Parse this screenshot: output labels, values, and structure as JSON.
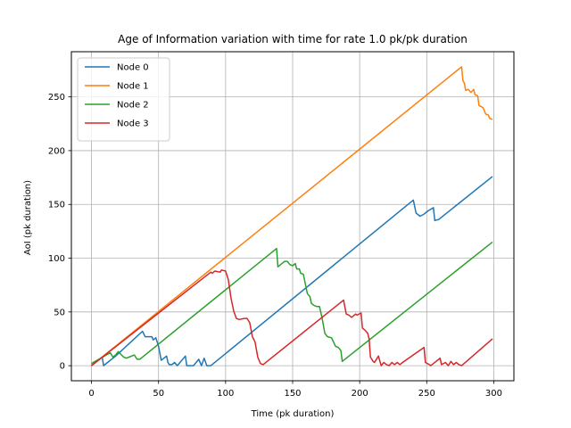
{
  "chart_data": {
    "type": "line",
    "title": "Age of Information variation with time for rate 1.0 pk/pk duration",
    "xlabel": "Time (pk duration)",
    "ylabel": "AoI (pk duration)",
    "xlim": [
      -15,
      315
    ],
    "ylim": [
      -14,
      292
    ],
    "xticks": [
      0,
      50,
      100,
      150,
      200,
      250,
      300
    ],
    "yticks": [
      0,
      50,
      100,
      150,
      200,
      250
    ],
    "grid": true,
    "legend_position": "top-left",
    "series": [
      {
        "name": "Node 0",
        "color": "#1f77b4",
        "points": [
          [
            0,
            0
          ],
          [
            8,
            8
          ],
          [
            9,
            0
          ],
          [
            12,
            3
          ],
          [
            14,
            5
          ],
          [
            18,
            9
          ],
          [
            38,
            32
          ],
          [
            40,
            27
          ],
          [
            45,
            27
          ],
          [
            46,
            24
          ],
          [
            48,
            26
          ],
          [
            50,
            18
          ],
          [
            52,
            5
          ],
          [
            54,
            7
          ],
          [
            56,
            9
          ],
          [
            57,
            3
          ],
          [
            58,
            1
          ],
          [
            60,
            1
          ],
          [
            62,
            3
          ],
          [
            64,
            0
          ],
          [
            70,
            9
          ],
          [
            71,
            0
          ],
          [
            76,
            0
          ],
          [
            80,
            6
          ],
          [
            82,
            0
          ],
          [
            84,
            7
          ],
          [
            86,
            0
          ],
          [
            89,
            0
          ],
          [
            238,
            152
          ],
          [
            240,
            154
          ],
          [
            242,
            142
          ],
          [
            245,
            139
          ],
          [
            248,
            141
          ],
          [
            251,
            144
          ],
          [
            255,
            147
          ],
          [
            256,
            135
          ],
          [
            259,
            136
          ],
          [
            299,
            176
          ]
        ]
      },
      {
        "name": "Node 1",
        "color": "#ff7f0e",
        "points": [
          [
            0,
            0
          ],
          [
            276,
            278
          ],
          [
            277,
            265
          ],
          [
            278,
            263
          ],
          [
            279,
            256
          ],
          [
            281,
            257
          ],
          [
            283,
            254
          ],
          [
            285,
            257
          ],
          [
            286,
            252
          ],
          [
            288,
            251
          ],
          [
            289,
            242
          ],
          [
            292,
            240
          ],
          [
            294,
            234
          ],
          [
            296,
            233
          ],
          [
            297,
            230
          ],
          [
            299,
            229
          ]
        ]
      },
      {
        "name": "Node 2",
        "color": "#2ca02c",
        "points": [
          [
            0,
            2
          ],
          [
            14,
            12
          ],
          [
            16,
            8
          ],
          [
            18,
            10
          ],
          [
            20,
            13
          ],
          [
            24,
            8
          ],
          [
            26,
            7
          ],
          [
            28,
            8
          ],
          [
            32,
            10
          ],
          [
            34,
            6
          ],
          [
            36,
            6
          ],
          [
            138,
            109
          ],
          [
            139,
            92
          ],
          [
            142,
            95
          ],
          [
            144,
            97
          ],
          [
            146,
            97
          ],
          [
            148,
            94
          ],
          [
            150,
            93
          ],
          [
            152,
            95
          ],
          [
            153,
            90
          ],
          [
            155,
            90
          ],
          [
            156,
            86
          ],
          [
            158,
            85
          ],
          [
            161,
            67
          ],
          [
            163,
            64
          ],
          [
            164,
            58
          ],
          [
            166,
            56
          ],
          [
            168,
            55
          ],
          [
            170,
            55
          ],
          [
            172,
            44
          ],
          [
            174,
            30
          ],
          [
            176,
            27
          ],
          [
            179,
            26
          ],
          [
            182,
            18
          ],
          [
            184,
            17
          ],
          [
            186,
            14
          ],
          [
            187,
            4
          ],
          [
            189,
            6
          ],
          [
            299,
            115
          ]
        ]
      },
      {
        "name": "Node 3",
        "color": "#d62728",
        "points": [
          [
            0,
            0
          ],
          [
            89,
            87
          ],
          [
            90,
            86
          ],
          [
            92,
            88
          ],
          [
            96,
            87
          ],
          [
            97,
            89
          ],
          [
            100,
            88
          ],
          [
            101,
            84
          ],
          [
            102,
            80
          ],
          [
            104,
            63
          ],
          [
            106,
            51
          ],
          [
            108,
            44
          ],
          [
            110,
            43
          ],
          [
            114,
            44
          ],
          [
            116,
            44
          ],
          [
            118,
            40
          ],
          [
            120,
            27
          ],
          [
            122,
            22
          ],
          [
            124,
            8
          ],
          [
            126,
            2
          ],
          [
            128,
            1
          ],
          [
            188,
            61
          ],
          [
            190,
            48
          ],
          [
            192,
            47
          ],
          [
            194,
            45
          ],
          [
            197,
            48
          ],
          [
            198,
            47
          ],
          [
            201,
            49
          ],
          [
            202,
            35
          ],
          [
            204,
            33
          ],
          [
            206,
            30
          ],
          [
            207,
            25
          ],
          [
            208,
            8
          ],
          [
            210,
            4
          ],
          [
            211,
            3
          ],
          [
            214,
            9
          ],
          [
            216,
            0
          ],
          [
            218,
            3
          ],
          [
            220,
            1
          ],
          [
            222,
            0
          ],
          [
            224,
            3
          ],
          [
            226,
            1
          ],
          [
            228,
            3
          ],
          [
            230,
            1
          ],
          [
            232,
            3
          ],
          [
            248,
            17
          ],
          [
            249,
            3
          ],
          [
            252,
            1
          ],
          [
            253,
            0
          ],
          [
            258,
            5
          ],
          [
            260,
            7
          ],
          [
            261,
            1
          ],
          [
            264,
            3
          ],
          [
            266,
            0
          ],
          [
            268,
            4
          ],
          [
            270,
            1
          ],
          [
            272,
            3
          ],
          [
            274,
            1
          ],
          [
            276,
            0
          ],
          [
            299,
            25
          ]
        ]
      }
    ]
  }
}
